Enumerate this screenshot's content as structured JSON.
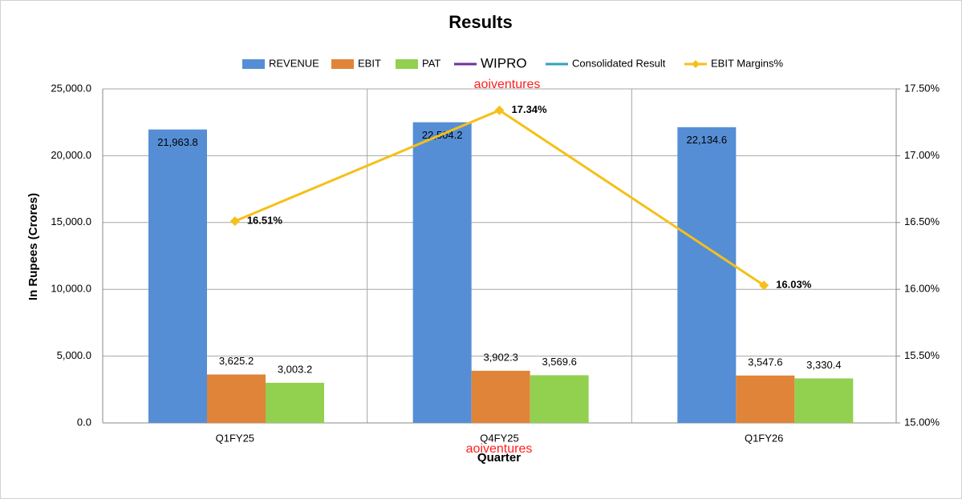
{
  "chart_data": {
    "type": "bar",
    "title": "Results",
    "xlabel": "Quarter",
    "ylabel": "In Rupees (Crores)",
    "annotations": [
      "aoiventures",
      "aoiventures"
    ],
    "categories": [
      "Q1FY25",
      "Q4FY25",
      "Q1FY26"
    ],
    "series": [
      {
        "name": "REVENUE",
        "type": "bar",
        "color": "#558ed5",
        "values": [
          21963.8,
          22504.2,
          22134.6
        ],
        "value_labels": [
          "21,963.8",
          "22,504.2",
          "22,134.6"
        ]
      },
      {
        "name": "EBIT",
        "type": "bar",
        "color": "#e0843a",
        "values": [
          3625.2,
          3902.3,
          3547.6
        ],
        "value_labels": [
          "3,625.2",
          "3,902.3",
          "3,547.6"
        ]
      },
      {
        "name": "PAT",
        "type": "bar",
        "color": "#92d050",
        "values": [
          3003.2,
          3569.6,
          3330.4
        ],
        "value_labels": [
          "3,003.2",
          "3,569.6",
          "3,330.4"
        ]
      },
      {
        "name": "WIPRO",
        "type": "line",
        "color": "#7030a0",
        "values": [
          null,
          null,
          null
        ]
      },
      {
        "name": "Consolidated Result",
        "type": "line",
        "color": "#31a0c0",
        "values": [
          null,
          null,
          null
        ]
      },
      {
        "name": "EBIT Margins%",
        "type": "line",
        "axis": "y2",
        "color": "#f5c018",
        "values": [
          16.51,
          17.34,
          16.03
        ],
        "value_labels": [
          "16.51%",
          "17.34%",
          "16.03%"
        ]
      }
    ],
    "ylim": [
      0,
      25000
    ],
    "yticks": [
      {
        "value": 0,
        "label": "0.0"
      },
      {
        "value": 5000,
        "label": "5,000.0"
      },
      {
        "value": 10000,
        "label": "10,000.0"
      },
      {
        "value": 15000,
        "label": "15,000.0"
      },
      {
        "value": 20000,
        "label": "20,000.0"
      },
      {
        "value": 25000,
        "label": "25,000.0"
      }
    ],
    "y2lim": [
      15,
      17.5
    ],
    "y2ticks": [
      {
        "value": 15,
        "label": "15.00%"
      },
      {
        "value": 15.5,
        "label": "15.50%"
      },
      {
        "value": 16,
        "label": "16.00%"
      },
      {
        "value": 16.5,
        "label": "16.50%"
      },
      {
        "value": 17,
        "label": "17.00%"
      },
      {
        "value": 17.5,
        "label": "17.50%"
      }
    ],
    "grid": true
  }
}
